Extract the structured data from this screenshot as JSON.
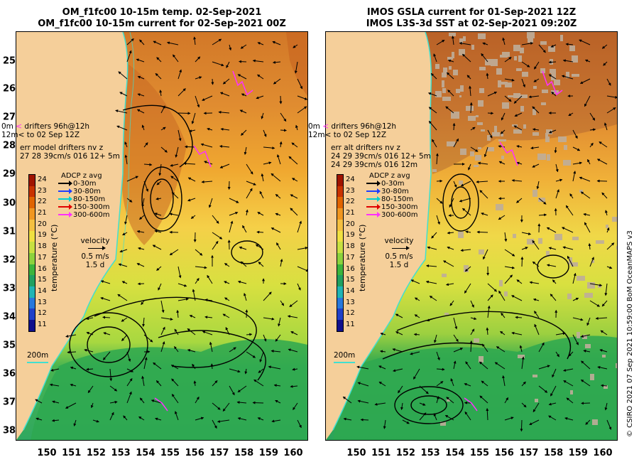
{
  "left_panel": {
    "title_line1": "OM_f1fc00 10-15m temp. 02-Sep-2021",
    "title_line2": "OM_f1fc00 10-15m current for 02-Sep-2021 00Z",
    "drifters_line1": "drifters 96h@12h",
    "drifters_line2": "to 02 Sep 12Z",
    "depth_0m": "0m",
    "depth_12m": "12m",
    "err_line1": "err model drifters nv z",
    "err_line2": "27 28 39cm/s 016 12+ 5m",
    "err_line3": ""
  },
  "right_panel": {
    "title_line1": "IMOS GSLA current for 01-Sep-2021 12Z",
    "title_line2": "IMOS L3S-3d SST at 02-Sep-2021 09:20Z",
    "drifters_line1": "drifters 96h@12h",
    "drifters_line2": "to 02 Sep 12Z",
    "depth_0m": "0m",
    "depth_12m": "12m",
    "err_line1": "err alt drifters nv z",
    "err_line2": "24 29 39cm/s 016 12+ 5m",
    "err_line3": "24 29 39cm/s 016 12m"
  },
  "adcp_legend": {
    "title": "ADCP z avg",
    "items": [
      {
        "label": "0-30m",
        "color": "#000000"
      },
      {
        "label": "30-80m",
        "color": "#1f3fff"
      },
      {
        "label": "80-150m",
        "color": "#00d0d0"
      },
      {
        "label": "150-300m",
        "color": "#e00000"
      },
      {
        "label": "300-600m",
        "color": "#ff30ff"
      }
    ]
  },
  "velocity_legend": {
    "title": "velocity",
    "speed": "0.5 m/s",
    "duration": "1.5 d"
  },
  "isobath_label": "200m",
  "colorbar": {
    "label": "temperature (°C)",
    "ticks": [
      "24",
      "23",
      "22",
      "21",
      "20",
      "19",
      "18",
      "17",
      "16",
      "15",
      "14",
      "13",
      "12",
      "11"
    ],
    "colors": [
      "#a01400",
      "#c83200",
      "#e06400",
      "#f09620",
      "#f5c040",
      "#f0e040",
      "#c8e040",
      "#8cd23c",
      "#3cb43c",
      "#20a060",
      "#20b4b4",
      "#2878dc",
      "#2040c8",
      "#10108c"
    ]
  },
  "x_axis_ticks": [
    "150",
    "151",
    "152",
    "153",
    "154",
    "155",
    "156",
    "157",
    "158",
    "159",
    "160"
  ],
  "y_axis_ticks": [
    "25",
    "26",
    "27",
    "28",
    "29",
    "30",
    "31",
    "32",
    "33",
    "34",
    "35",
    "36",
    "37",
    "38"
  ],
  "credit": "© CSIRO 2021   07 Sep 2021 10:59:00 BoM OceanMAPS v3",
  "map_colors": {
    "land": "#f5cf9a",
    "coast": "#40e0d0"
  }
}
